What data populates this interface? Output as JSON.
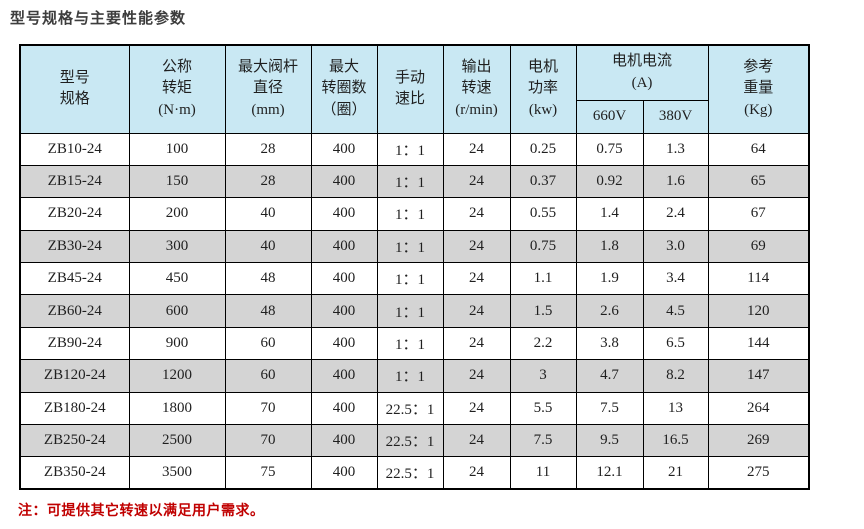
{
  "page_title": "型号规格与主要性能参数",
  "note": "注：可提供其它转速以满足用户需求。",
  "colors": {
    "header_bg": "#c9e8f3",
    "row_alt_bg": "#d4d4d4",
    "border": "#000000",
    "note_text": "#c00000",
    "title_text": "#3d3d3d"
  },
  "table": {
    "headers": {
      "model": "型号\n规格",
      "torque": "公称\n转矩\n(N·m)",
      "stem_diameter": "最大阀杆\n直径\n(mm)",
      "max_turns": "最大\n转圈数\n（圈）",
      "manual_ratio": "手动\n速比",
      "output_speed": "输出\n转速\n(r/min)",
      "motor_power": "电机\n功率\n(kw)",
      "motor_current": "电机电流\n(A)",
      "current_660": "660V",
      "current_380": "380V",
      "ref_weight": "参考\n重量\n(Kg)"
    },
    "rows": [
      [
        "ZB10-24",
        "100",
        "28",
        "400",
        "1：1",
        "24",
        "0.25",
        "0.75",
        "1.3",
        "64"
      ],
      [
        "ZB15-24",
        "150",
        "28",
        "400",
        "1：1",
        "24",
        "0.37",
        "0.92",
        "1.6",
        "65"
      ],
      [
        "ZB20-24",
        "200",
        "40",
        "400",
        "1：1",
        "24",
        "0.55",
        "1.4",
        "2.4",
        "67"
      ],
      [
        "ZB30-24",
        "300",
        "40",
        "400",
        "1：1",
        "24",
        "0.75",
        "1.8",
        "3.0",
        "69"
      ],
      [
        "ZB45-24",
        "450",
        "48",
        "400",
        "1：1",
        "24",
        "1.1",
        "1.9",
        "3.4",
        "114"
      ],
      [
        "ZB60-24",
        "600",
        "48",
        "400",
        "1：1",
        "24",
        "1.5",
        "2.6",
        "4.5",
        "120"
      ],
      [
        "ZB90-24",
        "900",
        "60",
        "400",
        "1：1",
        "24",
        "2.2",
        "3.8",
        "6.5",
        "144"
      ],
      [
        "ZB120-24",
        "1200",
        "60",
        "400",
        "1：1",
        "24",
        "3",
        "4.7",
        "8.2",
        "147"
      ],
      [
        "ZB180-24",
        "1800",
        "70",
        "400",
        "22.5：1",
        "24",
        "5.5",
        "7.5",
        "13",
        "264"
      ],
      [
        "ZB250-24",
        "2500",
        "70",
        "400",
        "22.5：1",
        "24",
        "7.5",
        "9.5",
        "16.5",
        "269"
      ],
      [
        "ZB350-24",
        "3500",
        "75",
        "400",
        "22.5：1",
        "24",
        "11",
        "12.1",
        "21",
        "275"
      ]
    ]
  }
}
